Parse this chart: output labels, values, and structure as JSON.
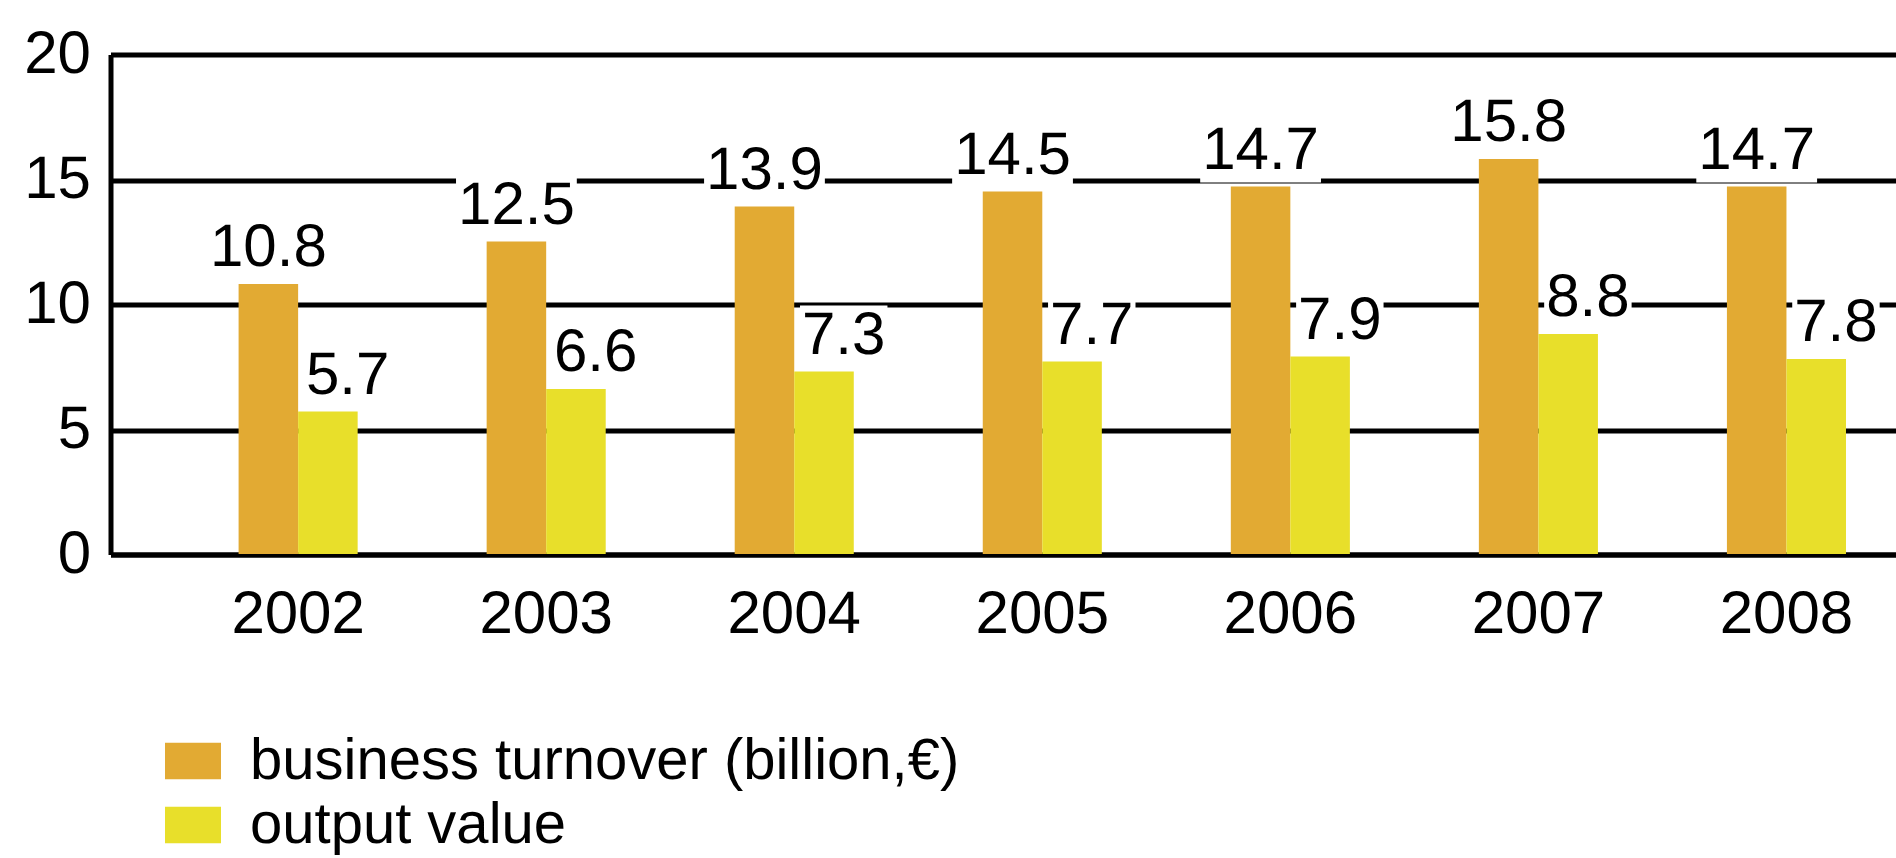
{
  "chart_data": {
    "type": "bar",
    "categories": [
      "2002",
      "2003",
      "2004",
      "2005",
      "2006",
      "2007",
      "2008"
    ],
    "series": [
      {
        "name": "business turnover (billion,€)",
        "color": "#e2aa33",
        "values": [
          10.8,
          12.5,
          13.9,
          14.5,
          14.7,
          15.8,
          14.7
        ]
      },
      {
        "name": "output value",
        "color": "#e8df2a",
        "values": [
          5.7,
          6.6,
          7.3,
          7.7,
          7.9,
          8.8,
          7.8
        ]
      }
    ],
    "ylim": [
      0,
      20
    ],
    "yticks": [
      0,
      5,
      10,
      15,
      20
    ],
    "grid": "y",
    "legend": "bottom left",
    "data_labels": true
  }
}
